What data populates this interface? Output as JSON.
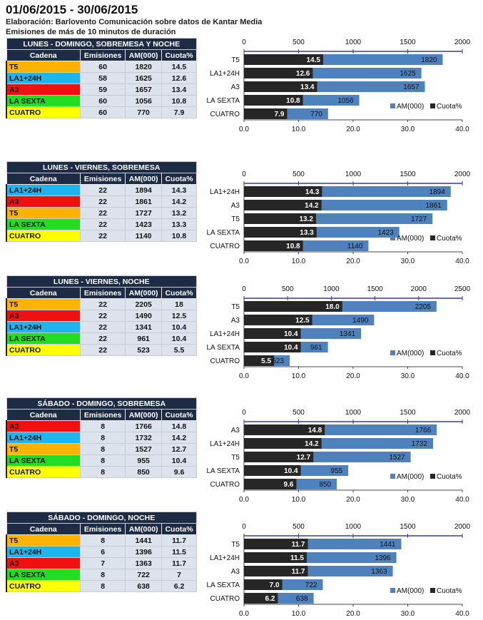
{
  "header": {
    "title": "01/06/2015 - 30/06/2015",
    "line1": "Elaboración: Barlovento Comunicación sobre datos de Kantar Media",
    "line2": "Emisiones de más de 10 minutos de duración"
  },
  "columns": [
    "Cadena",
    "Emisiones",
    "AM(000)",
    "Cuota%"
  ],
  "colors": {
    "T5": "#ffb300",
    "LA1+24H": "#1eb4ee",
    "A3": "#f01010",
    "LA SEXTA": "#22dd22",
    "CUATRO": "#ffff00",
    "am_bar": "#4f81bd",
    "cuota_bar": "#262626",
    "header_bg": "#1d2b45",
    "axis": "#3a3a9a"
  },
  "legend": {
    "am": "AM(000)",
    "cuota": "Cuota%"
  },
  "chart_data": [
    {
      "type": "bar",
      "title": "LUNES - DOMINGO, SOBREMESA Y NOCHE",
      "categories": [
        "T5",
        "LA1+24H",
        "A3",
        "LA SEXTA",
        "CUATRO"
      ],
      "emisiones": [
        60,
        58,
        59,
        60,
        60
      ],
      "am": [
        1820,
        1625,
        1657,
        1056,
        770
      ],
      "cuota": [
        14.5,
        12.6,
        13.4,
        10.8,
        7.9
      ],
      "am_ticks": [
        "0",
        "500",
        "1000",
        "1500",
        "2000"
      ],
      "am_max": 2000,
      "cuota_ticks": [
        "0.0",
        "10.0",
        "20.0",
        "30.0",
        "40.0"
      ],
      "cuota_max": 40,
      "legend": "bottom-right"
    },
    {
      "type": "bar",
      "title": "LUNES - VIERNES, SOBREMESA",
      "categories": [
        "LA1+24H",
        "A3",
        "T5",
        "LA SEXTA",
        "CUATRO"
      ],
      "emisiones": [
        22,
        22,
        22,
        22,
        22
      ],
      "am": [
        1894,
        1861,
        1727,
        1423,
        1140
      ],
      "cuota": [
        14.3,
        14.2,
        13.2,
        13.3,
        10.8
      ],
      "am_ticks": [
        "0",
        "500",
        "1000",
        "1500",
        "2000"
      ],
      "am_max": 2000,
      "cuota_ticks": [
        "0.0",
        "10.0",
        "20.0",
        "30.0",
        "40.0"
      ],
      "cuota_max": 40,
      "legend": "bottom-right"
    },
    {
      "type": "bar",
      "title": "LUNES - VIERNES, NOCHE",
      "categories": [
        "T5",
        "A3",
        "LA1+24H",
        "LA SEXTA",
        "CUATRO"
      ],
      "emisiones": [
        22,
        22,
        22,
        22,
        22
      ],
      "am": [
        2205,
        1490,
        1341,
        961,
        523
      ],
      "cuota": [
        18.0,
        12.5,
        10.4,
        10.4,
        5.5
      ],
      "am_ticks": [
        "0",
        "500",
        "1000",
        "1500",
        "2000",
        "2500"
      ],
      "am_max": 2500,
      "cuota_ticks": [
        "0.0",
        "10.0",
        "20.0",
        "30.0",
        "40.0"
      ],
      "cuota_max": 40,
      "legend": "bottom-right"
    },
    {
      "type": "bar",
      "title": "SÁBADO - DOMINGO, SOBREMESA",
      "categories": [
        "A3",
        "LA1+24H",
        "T5",
        "LA SEXTA",
        "CUATRO"
      ],
      "emisiones": [
        8,
        8,
        8,
        8,
        8
      ],
      "am": [
        1766,
        1732,
        1527,
        955,
        850
      ],
      "cuota": [
        14.8,
        14.2,
        12.7,
        10.4,
        9.6
      ],
      "am_ticks": [
        "0",
        "500",
        "1000",
        "1500",
        "2000"
      ],
      "am_max": 2000,
      "cuota_ticks": [
        "0.0",
        "10.0",
        "20.0",
        "30.0",
        "40.0"
      ],
      "cuota_max": 40,
      "legend": "bottom-right"
    },
    {
      "type": "bar",
      "title": "SÁBADO - DOMINGO, NOCHE",
      "categories": [
        "T5",
        "LA1+24H",
        "A3",
        "LA SEXTA",
        "CUATRO"
      ],
      "emisiones": [
        8,
        6,
        7,
        8,
        8
      ],
      "am": [
        1441,
        1396,
        1363,
        722,
        638
      ],
      "cuota": [
        11.7,
        11.5,
        11.7,
        7.0,
        6.2
      ],
      "am_ticks": [
        "0",
        "500",
        "1000",
        "1500",
        "2000"
      ],
      "am_max": 2000,
      "cuota_ticks": [
        "0.0",
        "10.0",
        "20.0",
        "30.0",
        "40.0"
      ],
      "cuota_max": 40,
      "legend": "bottom-right"
    }
  ]
}
